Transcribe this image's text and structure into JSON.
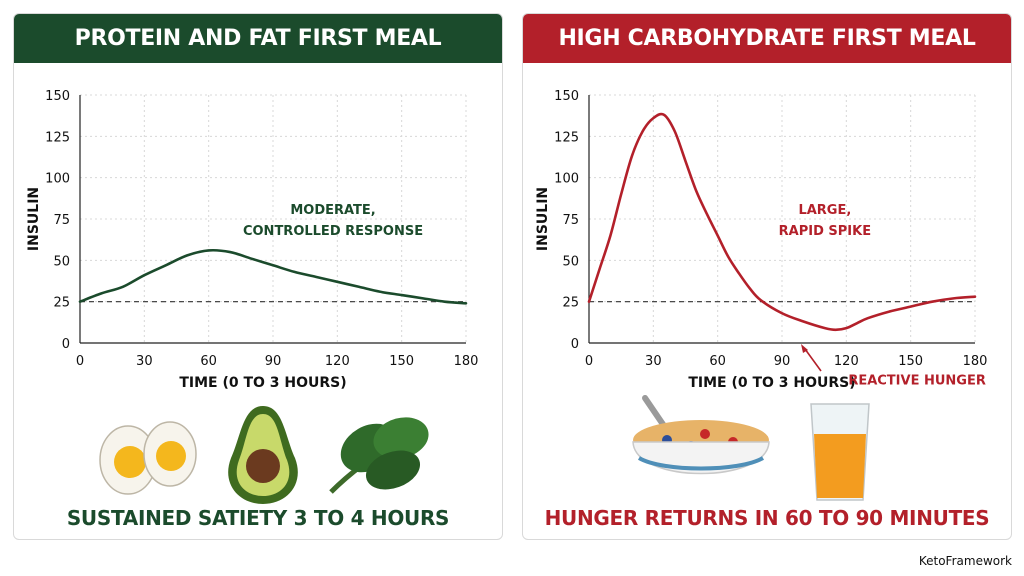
{
  "brand": "KetoFramework",
  "colors": {
    "green": "#1b4b2c",
    "red": "#b3202a"
  },
  "chart_data": [
    {
      "type": "line",
      "title": "PROTEIN AND FAT FIRST MEAL",
      "xlabel": "TIME (0 TO 3 HOURS)",
      "ylabel": "INSULIN",
      "xlim": [
        0,
        180
      ],
      "ylim": [
        0,
        150
      ],
      "xticks": [
        0,
        30,
        60,
        90,
        120,
        150,
        180
      ],
      "yticks": [
        0,
        25,
        50,
        75,
        100,
        125,
        150
      ],
      "grid": true,
      "baseline": 25,
      "color": "#1b4b2c",
      "series": [
        {
          "x": [
            0,
            10,
            20,
            30,
            40,
            50,
            60,
            70,
            80,
            90,
            100,
            110,
            120,
            130,
            140,
            150,
            160,
            170,
            180
          ],
          "values": [
            25,
            30,
            34,
            41,
            47,
            53,
            56,
            55,
            51,
            47,
            43,
            40,
            37,
            34,
            31,
            29,
            27,
            25,
            24
          ]
        }
      ],
      "annotations": [
        {
          "lines": [
            "MODERATE,",
            "CONTROLLED RESPONSE"
          ],
          "x": 118,
          "y": 78
        }
      ],
      "footer": "SUSTAINED SATIETY 3 TO 4 HOURS",
      "foods": [
        "egg-icon",
        "avocado-icon",
        "spinach-icon"
      ]
    },
    {
      "type": "line",
      "title": "HIGH CARBOHYDRATE FIRST MEAL",
      "xlabel": "TIME (0 TO 3 HOURS)",
      "ylabel": "INSULIN",
      "xlim": [
        0,
        180
      ],
      "ylim": [
        0,
        150
      ],
      "xticks": [
        0,
        30,
        60,
        90,
        120,
        150,
        180
      ],
      "yticks": [
        0,
        25,
        50,
        75,
        100,
        125,
        150
      ],
      "grid": true,
      "baseline": 25,
      "color": "#b3202a",
      "series": [
        {
          "x": [
            0,
            5,
            10,
            15,
            20,
            25,
            30,
            35,
            40,
            45,
            50,
            55,
            60,
            65,
            70,
            75,
            80,
            90,
            100,
            110,
            115,
            120,
            125,
            130,
            140,
            150,
            160,
            170,
            180
          ],
          "values": [
            25,
            45,
            65,
            90,
            113,
            128,
            136,
            138,
            128,
            110,
            92,
            78,
            65,
            52,
            42,
            33,
            26,
            18,
            13,
            9,
            8,
            9,
            12,
            15,
            19,
            22,
            25,
            27,
            28
          ]
        }
      ],
      "annotations": [
        {
          "lines": [
            "LARGE,",
            "RAPID SPIKE"
          ],
          "x": 110,
          "y": 78
        },
        {
          "lines": [
            "REACTIVE HUNGER"
          ],
          "x": 153,
          "y": -25
        }
      ],
      "footer": "HUNGER RETURNS IN 60 TO 90 MINUTES",
      "foods": [
        "cereal-bowl-icon",
        "orange-juice-icon"
      ]
    }
  ]
}
